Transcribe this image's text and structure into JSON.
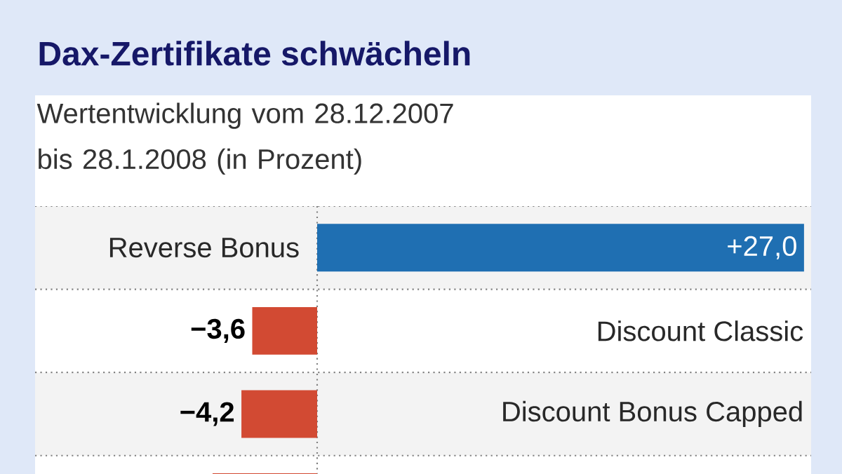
{
  "chart_data": {
    "type": "bar",
    "orientation": "horizontal",
    "title": "Dax-Zertifikate schwächeln",
    "subtitle": "Wertentwicklung vom 28.12.2007 bis 28.1.2008 (in Prozent)",
    "categories": [
      "Reverse Bonus",
      "Discount Classic",
      "Discount Bonus Capped",
      null
    ],
    "values": [
      27.0,
      -3.6,
      -4.2,
      -5.8
    ],
    "value_labels": [
      "+27,0",
      "−3,6",
      "−4,2",
      null
    ],
    "colors": [
      "#1f6fb2",
      "#d24a33",
      "#d24a33",
      "#d24a33"
    ],
    "grid": "y"
  }
}
